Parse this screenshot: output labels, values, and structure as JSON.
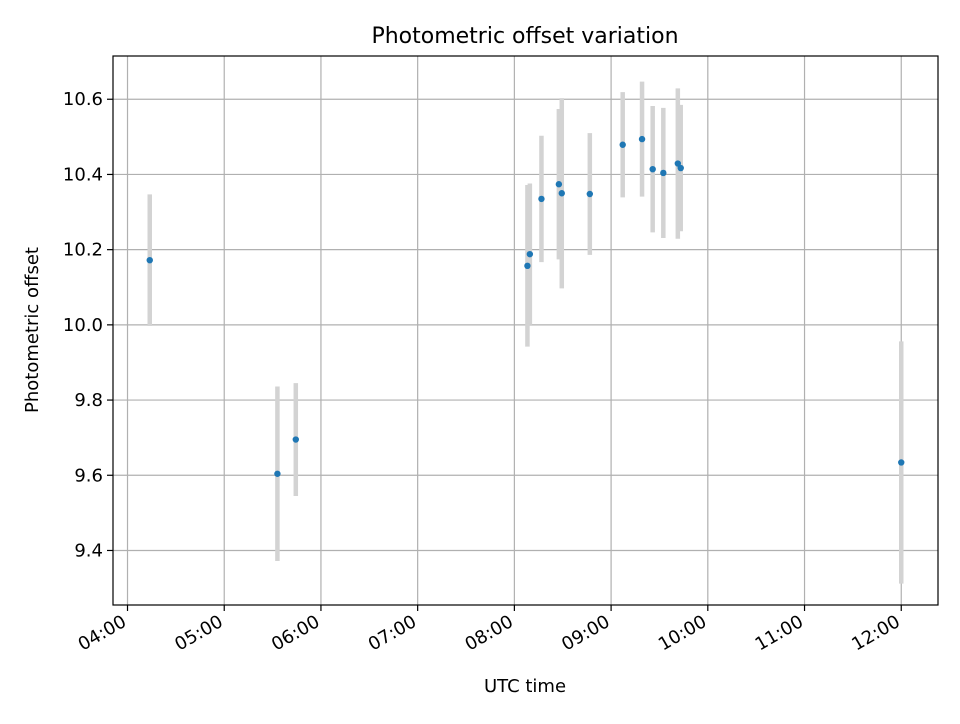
{
  "chart_data": {
    "type": "scatter",
    "title": "Photometric offset variation",
    "xlabel": "UTC time",
    "ylabel": "Photometric offset",
    "x_ticks": [
      "04:00",
      "05:00",
      "06:00",
      "07:00",
      "08:00",
      "09:00",
      "10:00",
      "11:00",
      "12:00"
    ],
    "x_tick_values_hours": [
      4,
      5,
      6,
      7,
      8,
      9,
      10,
      11,
      12
    ],
    "y_ticks": [
      "9.4",
      "9.6",
      "9.8",
      "10.0",
      "10.2",
      "10.4",
      "10.6"
    ],
    "y_tick_values": [
      9.4,
      9.6,
      9.8,
      10.0,
      10.2,
      10.4,
      10.6
    ],
    "xlim_hours": [
      3.85,
      12.38
    ],
    "ylim": [
      9.255,
      10.715
    ],
    "grid": true,
    "x_tick_rotation_deg": 30,
    "colors": {
      "points": "#1f77b4",
      "errorbars": "#d3d3d3",
      "grid": "#b0b0b0",
      "axes": "#000000"
    },
    "points": [
      {
        "time": "04:14",
        "x_hours": 4.23,
        "y": 10.172,
        "err": 0.175
      },
      {
        "time": "05:33",
        "x_hours": 5.55,
        "y": 9.604,
        "err": 0.232
      },
      {
        "time": "05:44",
        "x_hours": 5.74,
        "y": 9.695,
        "err": 0.15
      },
      {
        "time": "08:08",
        "x_hours": 8.135,
        "y": 10.157,
        "err": 0.215
      },
      {
        "time": "08:09",
        "x_hours": 8.16,
        "y": 10.188,
        "err": 0.188
      },
      {
        "time": "08:17",
        "x_hours": 8.28,
        "y": 10.335,
        "err": 0.168
      },
      {
        "time": "08:27",
        "x_hours": 8.46,
        "y": 10.374,
        "err": 0.2
      },
      {
        "time": "08:29",
        "x_hours": 8.49,
        "y": 10.35,
        "err": 0.253
      },
      {
        "time": "08:47",
        "x_hours": 8.78,
        "y": 10.348,
        "err": 0.162
      },
      {
        "time": "09:07",
        "x_hours": 9.12,
        "y": 10.479,
        "err": 0.14
      },
      {
        "time": "09:19",
        "x_hours": 9.32,
        "y": 10.494,
        "err": 0.153
      },
      {
        "time": "09:26",
        "x_hours": 9.43,
        "y": 10.414,
        "err": 0.168
      },
      {
        "time": "09:32",
        "x_hours": 9.54,
        "y": 10.404,
        "err": 0.173
      },
      {
        "time": "09:41",
        "x_hours": 9.69,
        "y": 10.429,
        "err": 0.2
      },
      {
        "time": "09:43",
        "x_hours": 9.72,
        "y": 10.417,
        "err": 0.168
      },
      {
        "time": "12:00",
        "x_hours": 12.0,
        "y": 9.634,
        "err": 0.322
      }
    ]
  }
}
